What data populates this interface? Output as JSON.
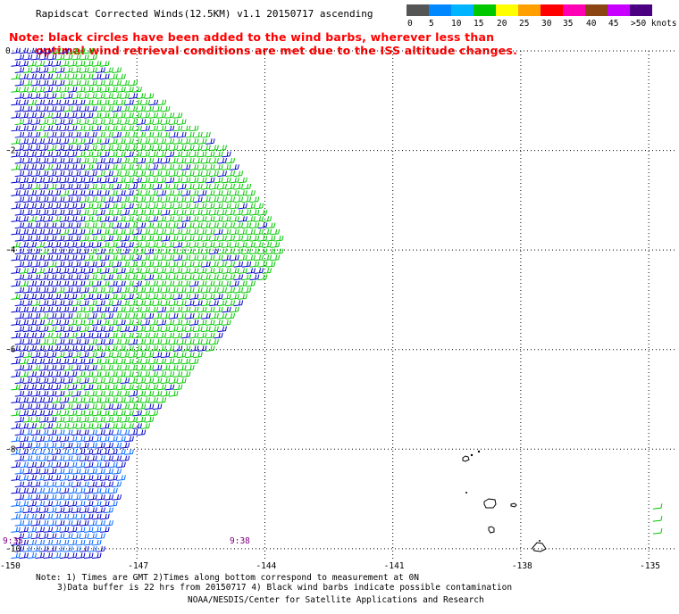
{
  "title": "Rapidscat Corrected Winds(12.5KM) v1.1 20150717 ascending",
  "notes": {
    "line1": "Note: black circles have been added to the wind barbs, wherever less than",
    "line2": "optimal wind retrieval conditions are met due to the ISS altitude changes."
  },
  "legend": {
    "colors": [
      "#555555",
      "#0088ff",
      "#00b4ff",
      "#00c800",
      "#ffff00",
      "#ffa000",
      "#ff0000",
      "#ff00b4",
      "#8b4513",
      "#c800ff",
      "#4b0082"
    ],
    "labels": [
      "0",
      "5",
      "10",
      "15",
      "20",
      "25",
      "30",
      "35",
      "40",
      "45",
      ">50 knots"
    ]
  },
  "axes": {
    "lon_labels": [
      "-150",
      "-147",
      "-144",
      "-141",
      "-138",
      "-135"
    ],
    "lat_labels": [
      "0",
      "-2",
      "-4",
      "-6",
      "-8",
      "-10"
    ]
  },
  "time_labels": [
    "9:35",
    "9:38"
  ],
  "footer": {
    "line1": "Note: 1) Times are GMT 2)Times along bottom correspond to measurement at 0N",
    "line2": "3)Data buffer is 22 hrs from 20150717 4) Black wind barbs indicate possible contamination",
    "line3": "NOAA/NESDIS/Center for Satellite Applications and Research"
  },
  "map_data": {
    "lon_range": [
      -150,
      -134.5
    ],
    "lat_range": [
      -10.2,
      0
    ],
    "swath_edge": [
      [
        -148.3,
        0.05
      ],
      [
        -145.0,
        -2.0
      ],
      [
        -143.6,
        -4.0
      ],
      [
        -145.3,
        -6.0
      ],
      [
        -147.2,
        -8.0
      ],
      [
        -147.9,
        -10.2
      ]
    ],
    "wind_speed_bands_knots": [
      10,
      15,
      20
    ],
    "barb_direction": "from-east"
  }
}
